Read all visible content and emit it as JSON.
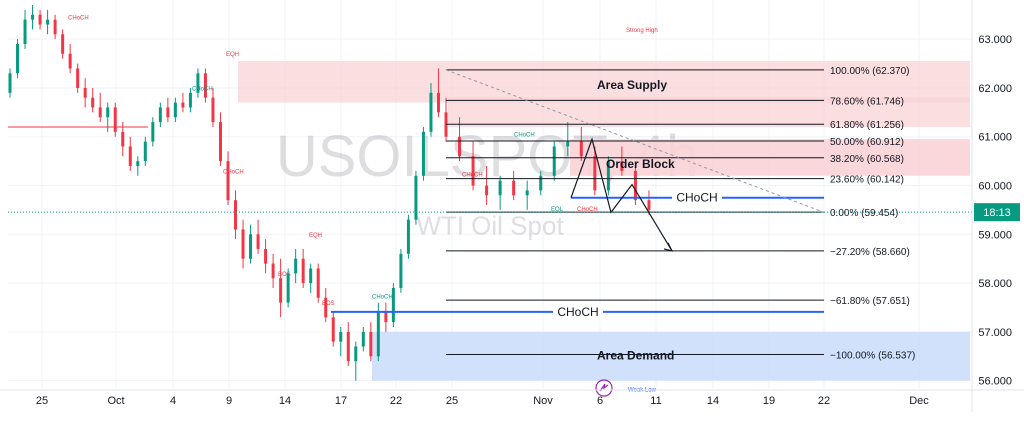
{
  "chart_data": {
    "type": "candlestick",
    "symbol_watermark": "USOILSPOT, 4h",
    "subtitle_watermark": "WTI Oil Spot",
    "ylim": [
      55.85,
      63.7
    ],
    "y_ticks": [
      "63.000",
      "62.000",
      "61.000",
      "60.000",
      "59.000",
      "58.000",
      "57.000",
      "56.000"
    ],
    "x_ticks": [
      "25",
      "Oct",
      "4",
      "9",
      "14",
      "17",
      "22",
      "25",
      "Nov",
      "6",
      "11",
      "14",
      "19",
      "22",
      "Dec"
    ],
    "last_price": "59.454",
    "countdown": "18:13",
    "fib_levels": [
      {
        "label": "100.00% (62.370)",
        "value": 62.37
      },
      {
        "label": "78.60% (61.746)",
        "value": 61.746
      },
      {
        "label": "61.80% (61.256)",
        "value": 61.256
      },
      {
        "label": "50.00% (60.912)",
        "value": 60.912
      },
      {
        "label": "38.20% (60.568)",
        "value": 60.568
      },
      {
        "label": "23.60% (60.142)",
        "value": 60.142
      },
      {
        "label": "0.00% (59.454)",
        "value": 59.454
      },
      {
        "label": "−27.20% (58.660)",
        "value": 58.66
      },
      {
        "label": "−61.80% (57.651)",
        "value": 57.651
      },
      {
        "label": "−100.00% (56.537)",
        "value": 56.537
      }
    ],
    "zones": {
      "supply_label": "Area Supply",
      "order_block_label": "Order Block",
      "demand_label": "Area Demand",
      "choch_upper_label": "CHoCH",
      "choch_lower_label": "CHoCH",
      "strong_high_label": "Strong High",
      "weak_low_label": "Weak Low"
    },
    "structure_labels": [
      "CHoCH",
      "EQH",
      "CHoCH",
      "CHoCH",
      "EQH",
      "BOS",
      "BOS",
      "CHoCH",
      "CHoCH",
      "CHoCH",
      "EQL",
      "CHoCH"
    ],
    "colors": {
      "up": "#089981",
      "down": "#f23645",
      "supply_zone": "#f8d3d6",
      "demand_zone": "#c9dcfa",
      "choch_line": "#2962ff",
      "fib_line": "#131722",
      "last_price_bg": "#089981"
    },
    "candles": [
      [
        61.9,
        62.4,
        61.8,
        62.3
      ],
      [
        62.3,
        63.0,
        62.2,
        62.9
      ],
      [
        62.9,
        63.6,
        62.8,
        63.4
      ],
      [
        63.4,
        63.7,
        63.2,
        63.5
      ],
      [
        63.5,
        63.6,
        63.2,
        63.3
      ],
      [
        63.3,
        63.6,
        63.1,
        63.4
      ],
      [
        63.4,
        63.5,
        63.0,
        63.1
      ],
      [
        63.1,
        63.2,
        62.6,
        62.7
      ],
      [
        62.7,
        62.9,
        62.3,
        62.4
      ],
      [
        62.4,
        62.5,
        61.9,
        62.0
      ],
      [
        62.0,
        62.2,
        61.6,
        61.8
      ],
      [
        61.8,
        62.0,
        61.5,
        61.6
      ],
      [
        61.6,
        61.9,
        61.3,
        61.4
      ],
      [
        61.4,
        61.7,
        61.1,
        61.6
      ],
      [
        61.6,
        61.7,
        61.0,
        61.1
      ],
      [
        61.1,
        61.3,
        60.6,
        60.8
      ],
      [
        60.8,
        61.0,
        60.3,
        60.4
      ],
      [
        60.4,
        60.6,
        60.2,
        60.5
      ],
      [
        60.5,
        61.0,
        60.4,
        60.9
      ],
      [
        60.9,
        61.4,
        60.8,
        61.3
      ],
      [
        61.3,
        61.7,
        61.2,
        61.6
      ],
      [
        61.6,
        61.8,
        61.3,
        61.4
      ],
      [
        61.4,
        61.8,
        61.3,
        61.7
      ],
      [
        61.7,
        61.9,
        61.5,
        61.6
      ],
      [
        61.6,
        62.0,
        61.5,
        61.9
      ],
      [
        61.9,
        62.4,
        61.8,
        62.3
      ],
      [
        62.3,
        62.4,
        61.7,
        61.8
      ],
      [
        61.8,
        62.0,
        61.2,
        61.3
      ],
      [
        61.3,
        61.5,
        60.4,
        60.5
      ],
      [
        60.5,
        60.7,
        59.6,
        59.7
      ],
      [
        59.7,
        59.9,
        58.9,
        59.1
      ],
      [
        59.1,
        59.3,
        58.3,
        58.5
      ],
      [
        58.5,
        59.2,
        58.4,
        59.0
      ],
      [
        59.0,
        59.3,
        58.6,
        58.7
      ],
      [
        58.7,
        58.9,
        58.2,
        58.4
      ],
      [
        58.4,
        58.6,
        57.9,
        58.1
      ],
      [
        58.1,
        58.5,
        57.3,
        57.6
      ],
      [
        57.6,
        58.3,
        57.5,
        58.2
      ],
      [
        58.2,
        58.7,
        58.0,
        58.5
      ],
      [
        58.5,
        58.7,
        57.9,
        58.0
      ],
      [
        58.0,
        58.4,
        57.8,
        58.3
      ],
      [
        58.3,
        58.4,
        57.6,
        57.7
      ],
      [
        57.7,
        57.9,
        57.2,
        57.3
      ],
      [
        57.3,
        57.4,
        56.7,
        56.8
      ],
      [
        56.8,
        57.1,
        56.5,
        57.0
      ],
      [
        57.0,
        57.2,
        56.3,
        56.4
      ],
      [
        56.4,
        56.8,
        56.0,
        56.7
      ],
      [
        56.7,
        57.1,
        56.6,
        57.0
      ],
      [
        57.0,
        57.2,
        56.4,
        56.5
      ],
      [
        56.5,
        57.6,
        56.4,
        57.4
      ],
      [
        57.4,
        57.6,
        57.0,
        57.2
      ],
      [
        57.2,
        58.0,
        57.1,
        57.9
      ],
      [
        57.9,
        58.7,
        57.8,
        58.6
      ],
      [
        58.6,
        59.4,
        58.5,
        59.3
      ],
      [
        59.3,
        60.3,
        59.2,
        60.2
      ],
      [
        60.2,
        61.2,
        60.1,
        61.1
      ],
      [
        61.1,
        62.1,
        61.0,
        61.9
      ],
      [
        61.9,
        62.4,
        61.4,
        61.5
      ],
      [
        61.5,
        61.8,
        60.9,
        61.0
      ],
      [
        61.0,
        61.4,
        60.5,
        60.6
      ],
      [
        60.6,
        60.9,
        59.9,
        60.0
      ],
      [
        60.0,
        60.4,
        59.6,
        59.8
      ],
      [
        59.8,
        60.2,
        59.5,
        60.1
      ],
      [
        60.1,
        60.3,
        59.7,
        59.8
      ],
      [
        59.8,
        60.1,
        59.5,
        59.9
      ],
      [
        59.9,
        60.3,
        59.8,
        60.2
      ],
      [
        60.2,
        60.9,
        60.1,
        60.8
      ],
      [
        60.8,
        61.3,
        60.6,
        60.9
      ],
      [
        60.9,
        61.2,
        60.5,
        60.6
      ],
      [
        60.6,
        60.8,
        59.8,
        59.9
      ],
      [
        59.9,
        60.6,
        59.8,
        60.5
      ],
      [
        60.5,
        60.8,
        60.2,
        60.3
      ],
      [
        60.3,
        60.4,
        59.6,
        59.7
      ],
      [
        59.7,
        59.9,
        59.4,
        59.5
      ]
    ]
  }
}
